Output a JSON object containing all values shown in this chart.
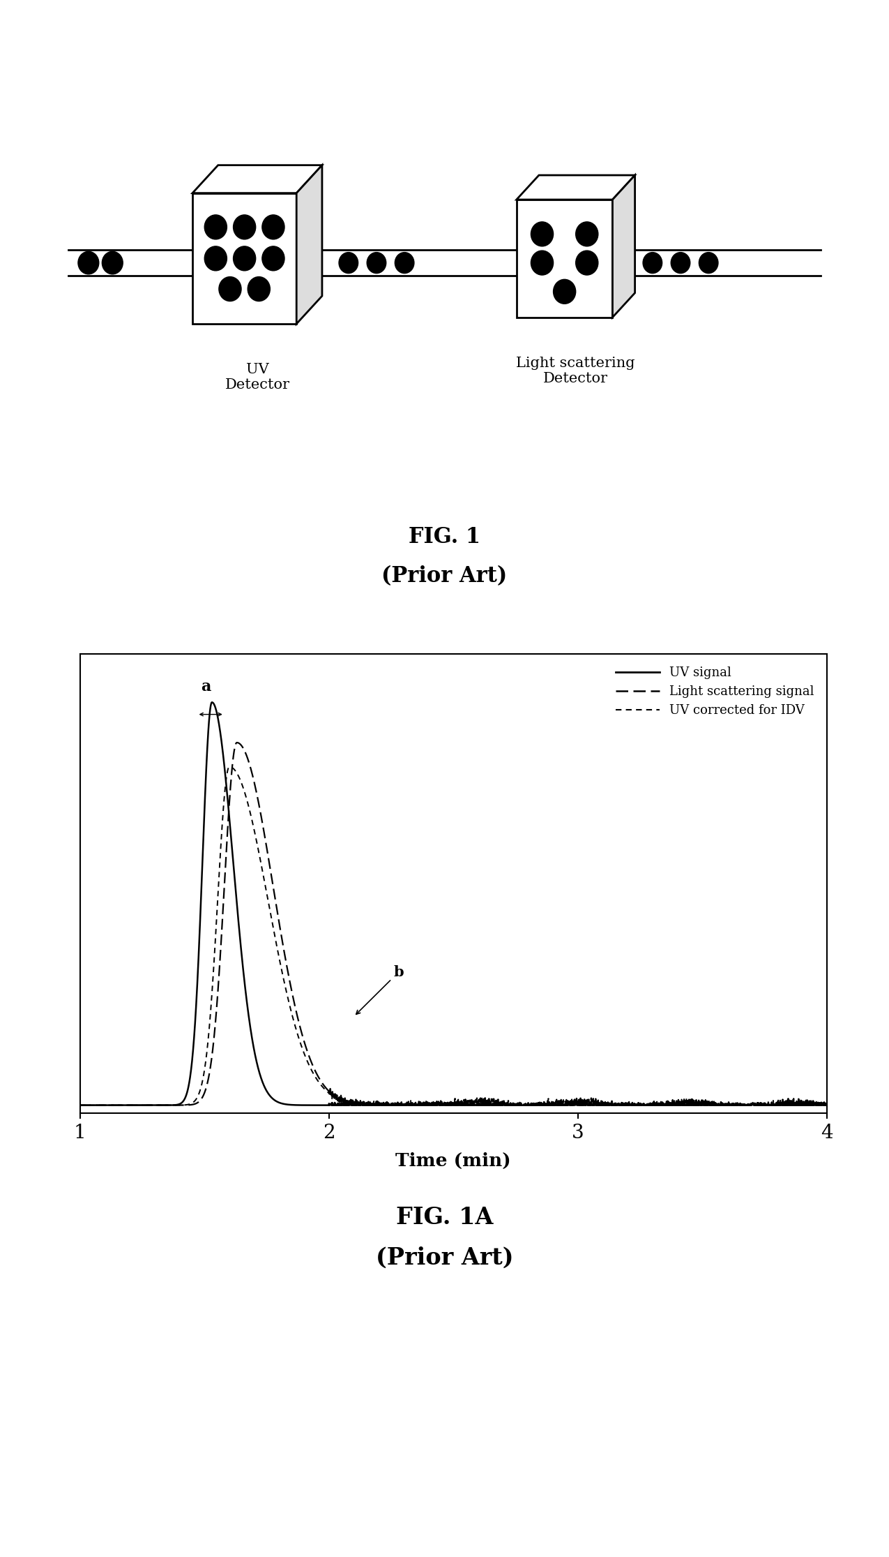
{
  "fig1_label": "FIG. 1",
  "fig1_sublabel": "(Prior Art)",
  "fig1a_label": "FIG. 1A",
  "fig1a_sublabel": "(Prior Art)",
  "uv_detector_label": "UV\nDetector",
  "ls_detector_label": "Light scattering\nDetector",
  "xlabel": "Time (min)",
  "legend_entries": [
    "UV signal",
    "Light scattering signal",
    "UV corrected for IDV"
  ],
  "xlim": [
    1,
    4
  ],
  "annotation_a": "a",
  "annotation_b": "b",
  "background_color": "#ffffff",
  "line_color": "#000000"
}
